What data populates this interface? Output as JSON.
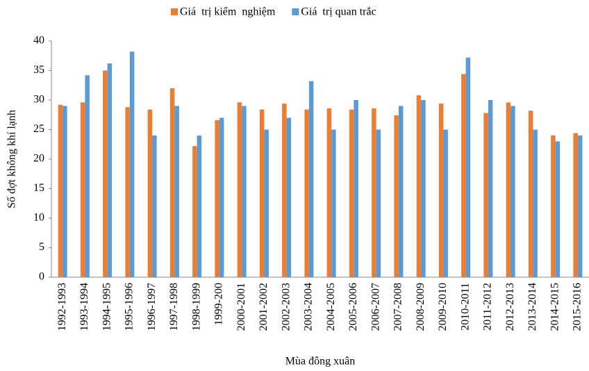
{
  "chart_data": {
    "type": "bar",
    "x_label": "Mùa đông xuân",
    "y_label": "Số đợt không khí lạnh",
    "categories": [
      "1992-1993",
      "1993-1994",
      "1994-1995",
      "1995-1996",
      "1996-1997",
      "1997-1998",
      "1998-1999",
      "1999-200",
      "2000-2001",
      "2001-2002",
      "2002-2003",
      "2003-2004",
      "2004-2005",
      "2005-2006",
      "2006-2007",
      "2007-2008",
      "2008-2009",
      "2009-2010",
      "2010-2011",
      "2011-2012",
      "2012-2013",
      "2013-2014",
      "2014-2015",
      "2015-2016"
    ],
    "series": [
      {
        "name": "Giá  trị kiểm  nghiệm",
        "color": "#ed7d31",
        "values": [
          29.2,
          29.6,
          35.0,
          28.8,
          28.4,
          32.0,
          22.2,
          26.6,
          29.6,
          28.4,
          29.4,
          28.4,
          28.6,
          28.4,
          28.6,
          27.4,
          30.8,
          29.4,
          34.4,
          27.8,
          29.6,
          28.2,
          24.0,
          24.4
        ]
      },
      {
        "name": "Giá  trị quan trắc",
        "color": "#5b9bd5",
        "values": [
          29,
          34.2,
          36.2,
          38.2,
          24,
          29,
          24,
          27,
          29,
          25,
          27,
          33.2,
          25,
          30,
          25,
          29,
          30,
          25,
          37.2,
          30,
          29,
          25,
          23,
          24
        ]
      }
    ],
    "ylim": [
      0,
      40
    ],
    "yticks": [
      0,
      5,
      10,
      15,
      20,
      25,
      30,
      35,
      40
    ],
    "grid": false,
    "legend": "top"
  }
}
